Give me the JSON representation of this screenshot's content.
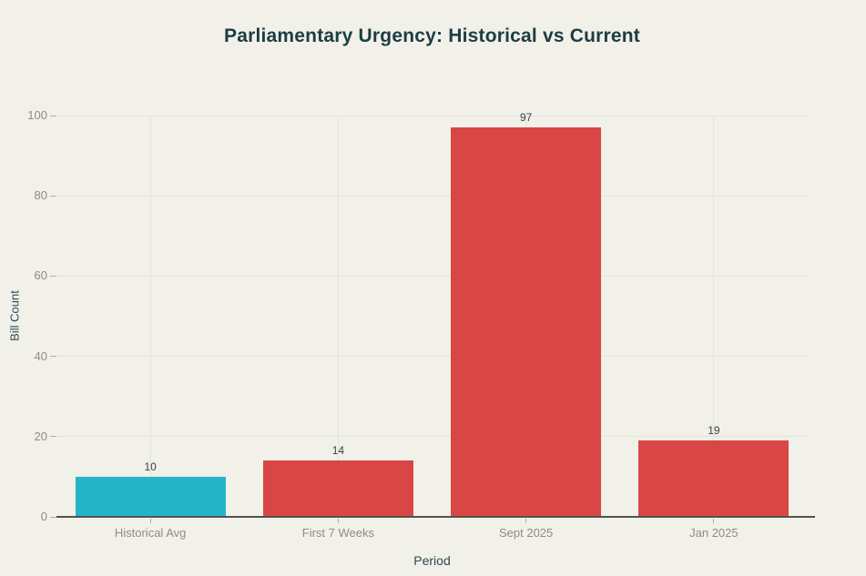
{
  "chart_data": {
    "type": "bar",
    "title": "Parliamentary Urgency: Historical vs Current",
    "xlabel": "Period",
    "ylabel": "Bill Count",
    "categories": [
      "Historical Avg",
      "First 7 Weeks",
      "Sept 2025",
      "Jan 2025"
    ],
    "values": [
      10,
      14,
      97,
      19
    ],
    "data_labels": [
      "10",
      "14",
      "97",
      "19"
    ],
    "bar_colors": [
      "#25b5c9",
      "#d84745",
      "#d84745",
      "#d84745"
    ],
    "ylim": [
      0,
      100
    ],
    "yticks": [
      0,
      20,
      40,
      60,
      80,
      100
    ],
    "grid": "on",
    "legend_position": "none"
  },
  "colors": {
    "background": "#f1f0e9",
    "title_text": "#1c3d43",
    "axis_title_text": "#2a4c52",
    "tick_label_text": "#8d8c85",
    "value_label_text": "#384442",
    "gridline": "#e5e4dc",
    "axis_line": "#53524c",
    "tick_mark": "#aeada6",
    "teal_bar": "#25b5c9",
    "red_bar": "#d84745"
  }
}
